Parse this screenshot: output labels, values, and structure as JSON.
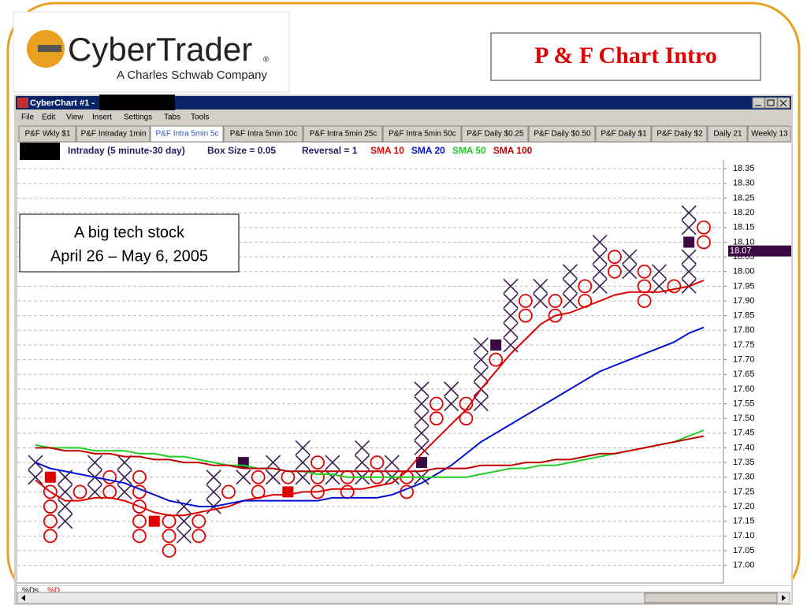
{
  "slide": {
    "title": "P & F Chart Intro",
    "logo_name": "CyberTrader",
    "logo_mark": "®",
    "logo_tagline": "A Charles Schwab Company"
  },
  "window": {
    "title": "CyberChart #1 -",
    "menu": [
      "File",
      "Edit",
      "View",
      "Insert",
      "Settings",
      "Tabs",
      "Tools"
    ],
    "tabs": [
      "P&F Wkly $1",
      "P&F Intraday 1min",
      "P&F Intra 5min 5c",
      "P&F Intra 5min 10c",
      "P&F Intra 5min 25c",
      "P&F Intra 5min 50c",
      "P&F Daily $0.25",
      "P&F Daily $0.50",
      "P&F Daily $1",
      "P&F Daily $2",
      "Daily 21",
      "Weekly 13"
    ],
    "active_tab": 2,
    "footer_labels": [
      "%Ds",
      "%D"
    ]
  },
  "chart_data": {
    "type": "point_and_figure",
    "info": [
      "Intraday (5 minute-30 day)",
      "Box Size = 0.05",
      "Reversal = 1"
    ],
    "annotation": [
      "A big tech stock",
      "April 26 – May 6, 2005"
    ],
    "box_size": 0.05,
    "x_color": "#3b2050",
    "o_color": "#e00000",
    "ylim": [
      16.94,
      18.38
    ],
    "yticks": [
      {
        "value": 17.0,
        "label": "17.00"
      },
      {
        "value": 17.05,
        "label": "17.05"
      },
      {
        "value": 17.1,
        "label": "17.10"
      },
      {
        "value": 17.15,
        "label": "17.15"
      },
      {
        "value": 17.2,
        "label": "17.20"
      },
      {
        "value": 17.25,
        "label": "17.25"
      },
      {
        "value": 17.3,
        "label": "17.30"
      },
      {
        "value": 17.35,
        "label": "17.35"
      },
      {
        "value": 17.4,
        "label": "17.40"
      },
      {
        "value": 17.45,
        "label": "17.45"
      },
      {
        "value": 17.5,
        "label": "17.50"
      },
      {
        "value": 17.55,
        "label": "17.55"
      },
      {
        "value": 17.6,
        "label": "17.60"
      },
      {
        "value": 17.65,
        "label": "17.65"
      },
      {
        "value": 17.7,
        "label": "17.70"
      },
      {
        "value": 17.75,
        "label": "17.75"
      },
      {
        "value": 17.8,
        "label": "17.80"
      },
      {
        "value": 17.85,
        "label": "17.85"
      },
      {
        "value": 17.9,
        "label": "17.90"
      },
      {
        "value": 17.95,
        "label": "17.95"
      },
      {
        "value": 18.0,
        "label": "18.00"
      },
      {
        "value": 18.05,
        "label": "18.05"
      },
      {
        "value": 18.1,
        "label": "18.10"
      },
      {
        "value": 18.15,
        "label": "18.15"
      },
      {
        "value": 18.2,
        "label": "18.20"
      },
      {
        "value": 18.25,
        "label": "18.25"
      },
      {
        "value": 18.3,
        "label": "18.30"
      },
      {
        "value": 18.35,
        "label": "18.35"
      }
    ],
    "grid": true,
    "last_price": {
      "value": 18.07,
      "label": "18.07"
    },
    "last_price_color": "#3b0a45",
    "columns": [
      {
        "kind": "X",
        "low": 17.3,
        "high": 17.35
      },
      {
        "kind": "O",
        "low": 17.1,
        "high": 17.25,
        "marker": 17.3,
        "marker_color": "#e00000"
      },
      {
        "kind": "X",
        "low": 17.15,
        "high": 17.3
      },
      {
        "kind": "O",
        "low": 17.25,
        "high": 17.25
      },
      {
        "kind": "X",
        "low": 17.25,
        "high": 17.35
      },
      {
        "kind": "O",
        "low": 17.25,
        "high": 17.3
      },
      {
        "kind": "X",
        "low": 17.25,
        "high": 17.35
      },
      {
        "kind": "O",
        "low": 17.1,
        "high": 17.3
      },
      {
        "kind": "X",
        "low": 17.15,
        "high": 17.15,
        "marker": 17.15,
        "marker_color": "#e00000"
      },
      {
        "kind": "O",
        "low": 17.05,
        "high": 17.15
      },
      {
        "kind": "X",
        "low": 17.1,
        "high": 17.2
      },
      {
        "kind": "O",
        "low": 17.1,
        "high": 17.15
      },
      {
        "kind": "X",
        "low": 17.2,
        "high": 17.3
      },
      {
        "kind": "O",
        "low": 17.25,
        "high": 17.25
      },
      {
        "kind": "X",
        "low": 17.3,
        "high": 17.35,
        "marker": 17.35,
        "marker_color": "#3b0a45"
      },
      {
        "kind": "O",
        "low": 17.25,
        "high": 17.3
      },
      {
        "kind": "X",
        "low": 17.3,
        "high": 17.35
      },
      {
        "kind": "O",
        "low": 17.25,
        "high": 17.3,
        "marker": 17.25,
        "marker_color": "#e00000"
      },
      {
        "kind": "X",
        "low": 17.3,
        "high": 17.4
      },
      {
        "kind": "O",
        "low": 17.25,
        "high": 17.35
      },
      {
        "kind": "X",
        "low": 17.3,
        "high": 17.35
      },
      {
        "kind": "O",
        "low": 17.25,
        "high": 17.3
      },
      {
        "kind": "X",
        "low": 17.3,
        "high": 17.4
      },
      {
        "kind": "O",
        "low": 17.3,
        "high": 17.35
      },
      {
        "kind": "X",
        "low": 17.3,
        "high": 17.35
      },
      {
        "kind": "O",
        "low": 17.25,
        "high": 17.3
      },
      {
        "kind": "X",
        "low": 17.3,
        "high": 17.6,
        "marker": 17.35,
        "marker_color": "#3b0a45"
      },
      {
        "kind": "O",
        "low": 17.5,
        "high": 17.55
      },
      {
        "kind": "X",
        "low": 17.55,
        "high": 17.6
      },
      {
        "kind": "O",
        "low": 17.5,
        "high": 17.55
      },
      {
        "kind": "X",
        "low": 17.55,
        "high": 17.75
      },
      {
        "kind": "O",
        "low": 17.7,
        "high": 17.75,
        "marker": 17.75,
        "marker_color": "#3b0a45"
      },
      {
        "kind": "X",
        "low": 17.75,
        "high": 17.95
      },
      {
        "kind": "O",
        "low": 17.85,
        "high": 17.9
      },
      {
        "kind": "X",
        "low": 17.9,
        "high": 17.95
      },
      {
        "kind": "O",
        "low": 17.85,
        "high": 17.9
      },
      {
        "kind": "X",
        "low": 17.9,
        "high": 18.0
      },
      {
        "kind": "O",
        "low": 17.9,
        "high": 17.95
      },
      {
        "kind": "X",
        "low": 17.95,
        "high": 18.1
      },
      {
        "kind": "O",
        "low": 18.0,
        "high": 18.05
      },
      {
        "kind": "X",
        "low": 18.0,
        "high": 18.05
      },
      {
        "kind": "O",
        "low": 17.9,
        "high": 18.0
      },
      {
        "kind": "X",
        "low": 17.95,
        "high": 18.0
      },
      {
        "kind": "O",
        "low": 17.95,
        "high": 17.95
      },
      {
        "kind": "X",
        "low": 17.95,
        "high": 18.2,
        "marker": 18.1,
        "marker_color": "#3b0a45"
      },
      {
        "kind": "O",
        "low": 18.1,
        "high": 18.15
      }
    ],
    "series": [
      {
        "name": "SMA 10",
        "color": "#e00000",
        "values": [
          17.29,
          17.25,
          17.22,
          17.22,
          17.23,
          17.23,
          17.22,
          17.2,
          17.18,
          17.17,
          17.17,
          17.18,
          17.19,
          17.2,
          17.22,
          17.23,
          17.24,
          17.24,
          17.25,
          17.25,
          17.26,
          17.26,
          17.26,
          17.27,
          17.28,
          17.32,
          17.38,
          17.43,
          17.48,
          17.53,
          17.6,
          17.66,
          17.72,
          17.77,
          17.82,
          17.85,
          17.86,
          17.88,
          17.9,
          17.92,
          17.93,
          17.93,
          17.93,
          17.94,
          17.95,
          17.97
        ]
      },
      {
        "name": "SMA 20",
        "color": "#0010d0",
        "values": [
          17.35,
          17.33,
          17.32,
          17.31,
          17.3,
          17.29,
          17.28,
          17.26,
          17.24,
          17.22,
          17.21,
          17.2,
          17.2,
          17.21,
          17.22,
          17.22,
          17.22,
          17.22,
          17.22,
          17.22,
          17.23,
          17.23,
          17.23,
          17.23,
          17.24,
          17.26,
          17.28,
          17.31,
          17.34,
          17.38,
          17.42,
          17.45,
          17.48,
          17.51,
          17.54,
          17.57,
          17.6,
          17.63,
          17.66,
          17.68,
          17.7,
          17.72,
          17.74,
          17.76,
          17.79,
          17.81
        ]
      },
      {
        "name": "SMA 50",
        "color": "#22cc22",
        "values": [
          17.41,
          17.4,
          17.4,
          17.4,
          17.39,
          17.39,
          17.39,
          17.38,
          17.38,
          17.37,
          17.37,
          17.36,
          17.35,
          17.34,
          17.34,
          17.33,
          17.33,
          17.32,
          17.32,
          17.31,
          17.31,
          17.3,
          17.3,
          17.3,
          17.3,
          17.3,
          17.3,
          17.3,
          17.3,
          17.3,
          17.31,
          17.32,
          17.33,
          17.33,
          17.34,
          17.34,
          17.35,
          17.36,
          17.37,
          17.38,
          17.39,
          17.4,
          17.41,
          17.42,
          17.44,
          17.46
        ]
      },
      {
        "name": "SMA 100",
        "color": "#c00000",
        "values": [
          17.4,
          17.4,
          17.39,
          17.39,
          17.38,
          17.38,
          17.37,
          17.37,
          17.36,
          17.36,
          17.35,
          17.35,
          17.34,
          17.34,
          17.33,
          17.33,
          17.33,
          17.32,
          17.32,
          17.32,
          17.32,
          17.32,
          17.32,
          17.32,
          17.32,
          17.32,
          17.32,
          17.33,
          17.33,
          17.33,
          17.34,
          17.34,
          17.34,
          17.35,
          17.35,
          17.36,
          17.36,
          17.37,
          17.38,
          17.38,
          17.39,
          17.4,
          17.41,
          17.42,
          17.43,
          17.44
        ]
      }
    ]
  }
}
